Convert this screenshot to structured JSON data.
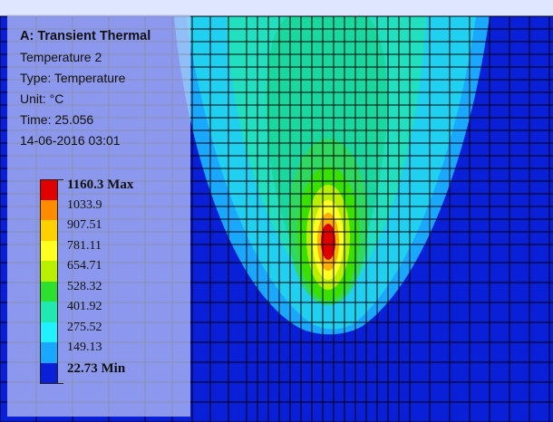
{
  "info": {
    "analysis": "A: Transient Thermal",
    "result": "Temperature 2",
    "type": "Type: Temperature",
    "unit": "Unit: °C",
    "time": "Time: 25.056",
    "date": "14-06-2016 03:01"
  },
  "legend": {
    "entries": [
      {
        "label": "1160.3 Max",
        "color": "#e00000"
      },
      {
        "label": "1033.9",
        "color": "#ff8c00"
      },
      {
        "label": "907.51",
        "color": "#ffd000"
      },
      {
        "label": "781.11",
        "color": "#ffff20"
      },
      {
        "label": "654.71",
        "color": "#b8f000"
      },
      {
        "label": "528.32",
        "color": "#2ee02e"
      },
      {
        "label": "401.92",
        "color": "#20e8b0"
      },
      {
        "label": "275.52",
        "color": "#20f0ff"
      },
      {
        "label": "149.13",
        "color": "#1aa8ff"
      },
      {
        "label": "22.73 Min",
        "color": "#0a1fd8"
      }
    ]
  },
  "colors": {
    "background_min": "#0a1fd8",
    "mesh_lines": "#000000"
  },
  "icons": {
    "model": "temperature-contour-plot"
  }
}
